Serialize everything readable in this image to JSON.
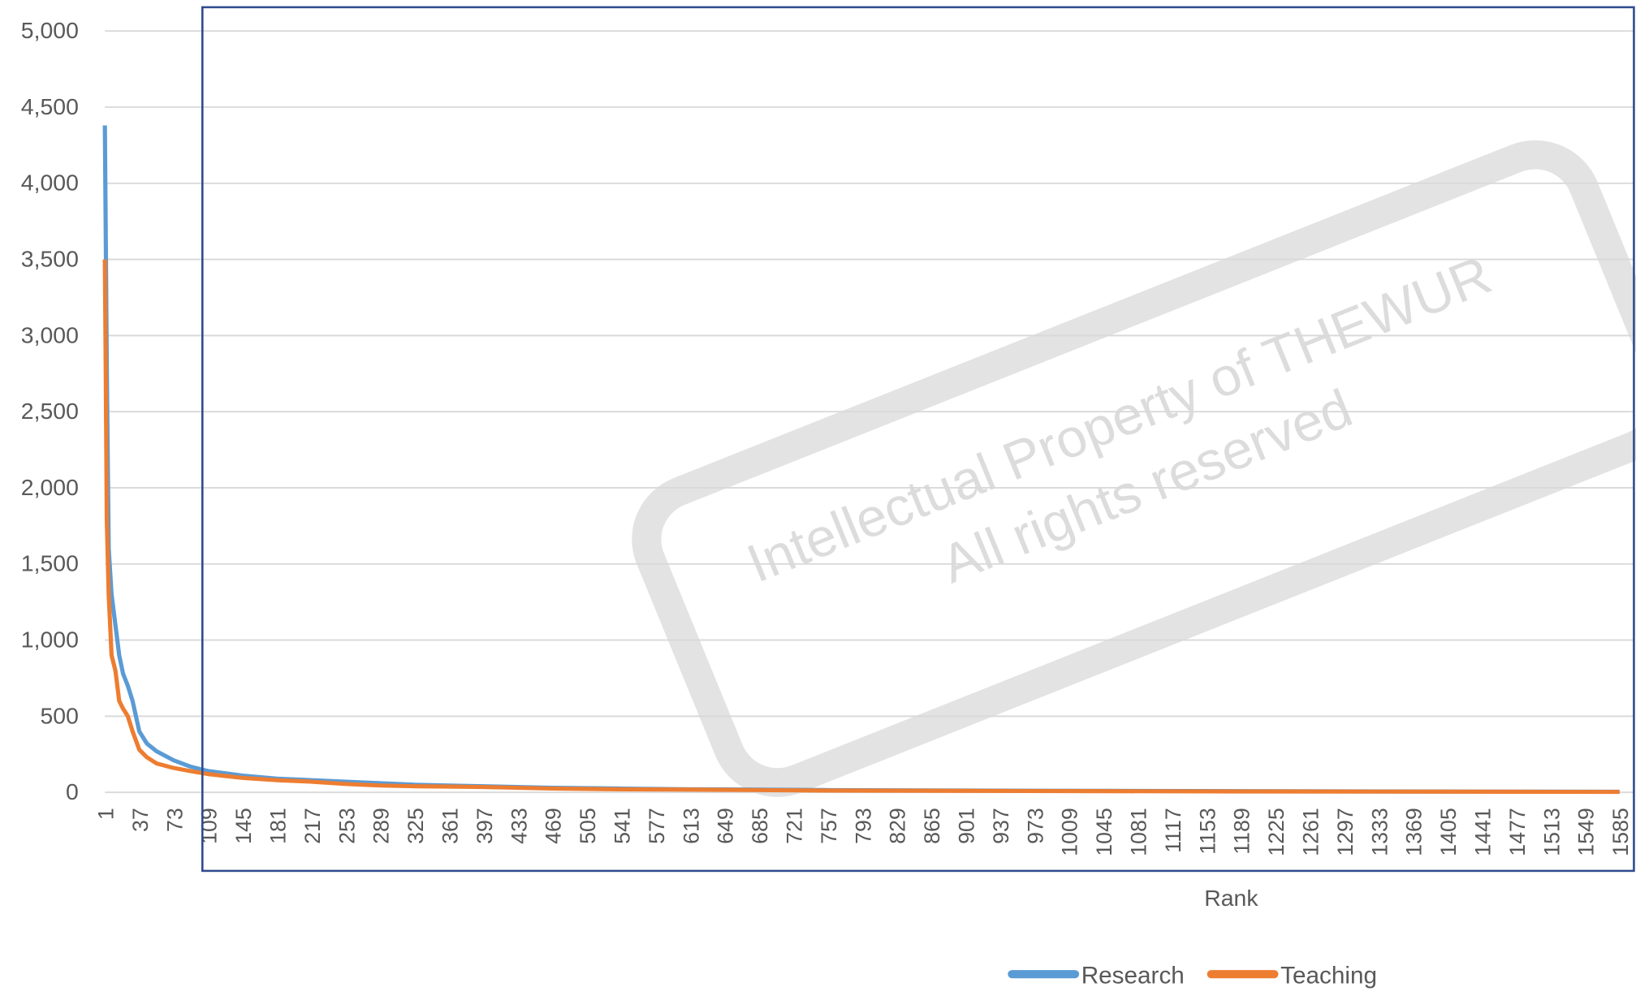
{
  "chart_data": {
    "type": "line",
    "x_label": "Rank",
    "annotations": [
      "Intellectual Property of THEWUR",
      "All rights reserved"
    ],
    "x": [
      1,
      2,
      3,
      5,
      8,
      12,
      16,
      20,
      25,
      30,
      37,
      45,
      55,
      73,
      90,
      109,
      145,
      181,
      217,
      253,
      289,
      325,
      361,
      397,
      469,
      541,
      613,
      685,
      757,
      901,
      1045,
      1189,
      1333,
      1477,
      1585
    ],
    "series": [
      {
        "name": "Research",
        "color": "#5b9bd5",
        "values": [
          4380,
          3600,
          2800,
          1600,
          1300,
          1100,
          900,
          780,
          700,
          600,
          400,
          320,
          270,
          210,
          170,
          140,
          110,
          90,
          80,
          70,
          60,
          50,
          45,
          40,
          30,
          25,
          20,
          18,
          15,
          12,
          10,
          8,
          6,
          5,
          4
        ]
      },
      {
        "name": "Teaching",
        "color": "#ed7d31",
        "values": [
          3500,
          2700,
          1800,
          1300,
          900,
          800,
          600,
          550,
          500,
          400,
          280,
          230,
          190,
          160,
          140,
          120,
          95,
          80,
          70,
          55,
          45,
          40,
          38,
          35,
          25,
          20,
          18,
          15,
          12,
          10,
          8,
          6,
          5,
          4,
          3
        ]
      }
    ],
    "xlim": [
      1,
      1600
    ],
    "xticks": [
      1,
      37,
      73,
      109,
      145,
      181,
      217,
      253,
      289,
      325,
      361,
      397,
      433,
      469,
      505,
      541,
      577,
      613,
      649,
      685,
      721,
      757,
      793,
      829,
      865,
      901,
      937,
      973,
      1009,
      1045,
      1081,
      1117,
      1153,
      1189,
      1225,
      1261,
      1297,
      1333,
      1369,
      1405,
      1441,
      1477,
      1513,
      1549,
      1585
    ],
    "ylim": [
      0,
      5000
    ],
    "yticks": [
      0,
      500,
      {
        "value": 1000,
        "label": "1,000"
      },
      {
        "value": 1500,
        "label": "1,500"
      },
      {
        "value": 2000,
        "label": "2,000"
      },
      {
        "value": 2500,
        "label": "2,500"
      },
      {
        "value": 3000,
        "label": "3,000"
      },
      {
        "value": 3500,
        "label": "3,500"
      },
      {
        "value": 4000,
        "label": "4,000"
      },
      {
        "value": 4500,
        "label": "4,500"
      },
      {
        "value": 5000,
        "label": "5,000"
      }
    ],
    "grid": true,
    "legend": "bottom"
  }
}
